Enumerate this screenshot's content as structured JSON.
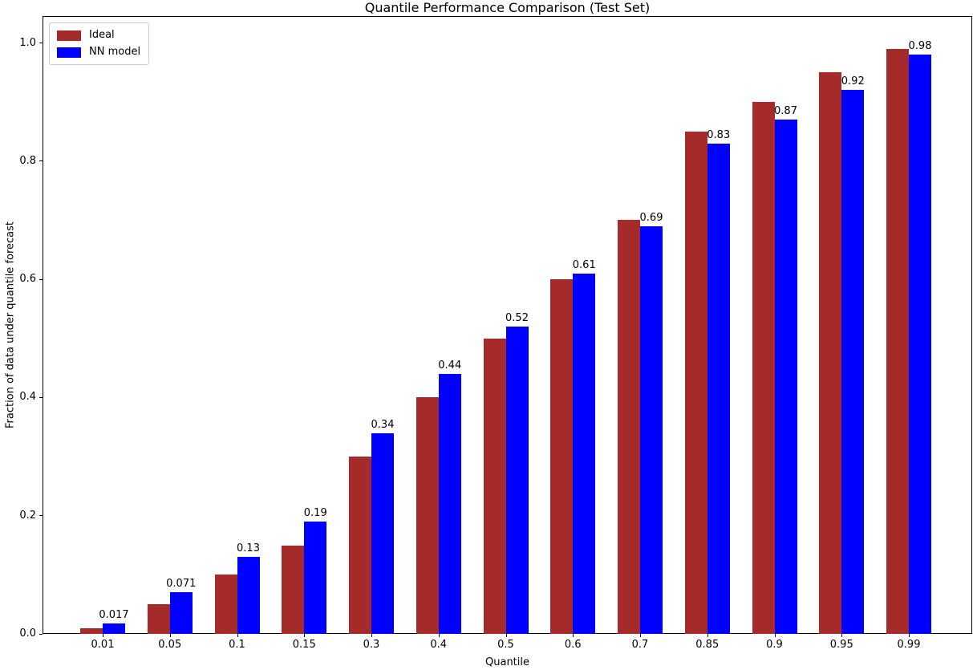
{
  "chart_data": {
    "type": "bar",
    "title": "Quantile Performance Comparison (Test Set)",
    "xlabel": "Quantile",
    "ylabel": "Fraction of data under quantile forecast",
    "categories": [
      "0.01",
      "0.05",
      "0.1",
      "0.15",
      "0.3",
      "0.4",
      "0.5",
      "0.6",
      "0.7",
      "0.85",
      "0.9",
      "0.95",
      "0.99"
    ],
    "series": [
      {
        "name": "Ideal",
        "color": "#a52a2a",
        "values": [
          0.01,
          0.05,
          0.1,
          0.15,
          0.3,
          0.4,
          0.5,
          0.6,
          0.7,
          0.85,
          0.9,
          0.95,
          0.99
        ]
      },
      {
        "name": "NN model",
        "color": "#0000ff",
        "values": [
          0.017,
          0.071,
          0.13,
          0.19,
          0.34,
          0.44,
          0.52,
          0.61,
          0.69,
          0.83,
          0.87,
          0.92,
          0.98
        ]
      }
    ],
    "bar_value_labels": [
      "0.017",
      "0.071",
      "0.13",
      "0.19",
      "0.34",
      "0.44",
      "0.52",
      "0.61",
      "0.69",
      "0.83",
      "0.87",
      "0.92",
      "0.98"
    ],
    "yticks": [
      "0.0",
      "0.2",
      "0.4",
      "0.6",
      "0.8",
      "1.0"
    ],
    "ylim": [
      0,
      1.045
    ],
    "xlim_note": "categorical axis",
    "grid": false,
    "legend_position": "upper left",
    "background_color": "#ffffff",
    "text_color": "#000000"
  }
}
